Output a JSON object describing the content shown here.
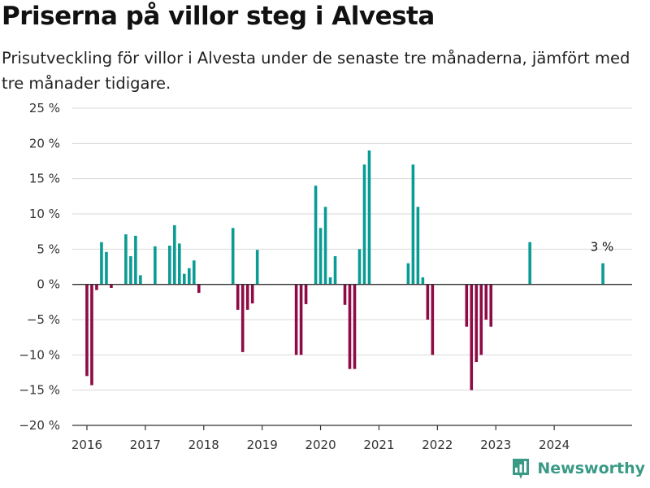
{
  "title": "Priserna på villor steg i Alvesta",
  "subtitle": "Prisutveckling för villor i Alvesta under de senaste tre månaderna, jämfört med tre månader tidigare.",
  "brand": {
    "name": "Newsworthy",
    "icon": "newsworthy-logo-icon",
    "color": "#3a9a86"
  },
  "colors": {
    "positive": "#0a9c94",
    "negative": "#8e0b45",
    "grid": "#d9d9d9",
    "zero_line": "#333333"
  },
  "chart_data": {
    "type": "bar",
    "title": "Priserna på villor steg i Alvesta",
    "subtitle": "Prisutveckling för villor i Alvesta under de senaste tre månaderna, jämfört med tre månader tidigare.",
    "xlabel": "",
    "ylabel": "",
    "ylim": [
      -20,
      25
    ],
    "xlim": [
      "2015-10",
      "2025-05"
    ],
    "grid": true,
    "y_ticks": [
      {
        "value": 25,
        "label": "25 %"
      },
      {
        "value": 20,
        "label": "20 %"
      },
      {
        "value": 15,
        "label": "15 %"
      },
      {
        "value": 10,
        "label": "10 %"
      },
      {
        "value": 5,
        "label": "5 %"
      },
      {
        "value": 0,
        "label": "0 %"
      },
      {
        "value": -5,
        "label": "−5 %"
      },
      {
        "value": -10,
        "label": "−10 %"
      },
      {
        "value": -15,
        "label": "−15 %"
      },
      {
        "value": -20,
        "label": "−20 %"
      }
    ],
    "x_ticks": [
      {
        "value": "2016-01",
        "label": "2016"
      },
      {
        "value": "2017-01",
        "label": "2017"
      },
      {
        "value": "2018-01",
        "label": "2018"
      },
      {
        "value": "2019-01",
        "label": "2019"
      },
      {
        "value": "2020-01",
        "label": "2020"
      },
      {
        "value": "2021-01",
        "label": "2021"
      },
      {
        "value": "2022-01",
        "label": "2022"
      },
      {
        "value": "2023-01",
        "label": "2023"
      },
      {
        "value": "2024-01",
        "label": "2024"
      }
    ],
    "annotation": {
      "x": "2024-11",
      "y": 3,
      "label": "3 %"
    },
    "bars": [
      {
        "x": "2016-01",
        "y": -13
      },
      {
        "x": "2016-02",
        "y": -14.3
      },
      {
        "x": "2016-03",
        "y": -0.8
      },
      {
        "x": "2016-04",
        "y": 6
      },
      {
        "x": "2016-05",
        "y": 4.6
      },
      {
        "x": "2016-06",
        "y": -0.5
      },
      {
        "x": "2016-09",
        "y": 7.1
      },
      {
        "x": "2016-10",
        "y": 4
      },
      {
        "x": "2016-11",
        "y": 6.9
      },
      {
        "x": "2016-12",
        "y": 1.3
      },
      {
        "x": "2017-03",
        "y": 5.4
      },
      {
        "x": "2017-06",
        "y": 5.5
      },
      {
        "x": "2017-07",
        "y": 8.4
      },
      {
        "x": "2017-08",
        "y": 5.8
      },
      {
        "x": "2017-09",
        "y": 1.5
      },
      {
        "x": "2017-10",
        "y": 2.3
      },
      {
        "x": "2017-11",
        "y": 3.4
      },
      {
        "x": "2017-12",
        "y": -1.2
      },
      {
        "x": "2018-07",
        "y": 8
      },
      {
        "x": "2018-08",
        "y": -3.6
      },
      {
        "x": "2018-09",
        "y": -9.6
      },
      {
        "x": "2018-10",
        "y": -3.6
      },
      {
        "x": "2018-11",
        "y": -2.7
      },
      {
        "x": "2018-12",
        "y": 4.9
      },
      {
        "x": "2019-08",
        "y": -10
      },
      {
        "x": "2019-09",
        "y": -10
      },
      {
        "x": "2019-10",
        "y": -2.8
      },
      {
        "x": "2019-12",
        "y": 14
      },
      {
        "x": "2020-01",
        "y": 8
      },
      {
        "x": "2020-02",
        "y": 11
      },
      {
        "x": "2020-03",
        "y": 1
      },
      {
        "x": "2020-04",
        "y": 4
      },
      {
        "x": "2020-06",
        "y": -2.9
      },
      {
        "x": "2020-07",
        "y": -12
      },
      {
        "x": "2020-08",
        "y": -12
      },
      {
        "x": "2020-09",
        "y": 5
      },
      {
        "x": "2020-10",
        "y": 17
      },
      {
        "x": "2020-11",
        "y": 19
      },
      {
        "x": "2021-07",
        "y": 3
      },
      {
        "x": "2021-08",
        "y": 17
      },
      {
        "x": "2021-09",
        "y": 11
      },
      {
        "x": "2021-10",
        "y": 1
      },
      {
        "x": "2021-11",
        "y": -5
      },
      {
        "x": "2021-12",
        "y": -10
      },
      {
        "x": "2022-07",
        "y": -6
      },
      {
        "x": "2022-08",
        "y": -15
      },
      {
        "x": "2022-09",
        "y": -11
      },
      {
        "x": "2022-10",
        "y": -10
      },
      {
        "x": "2022-11",
        "y": -5
      },
      {
        "x": "2022-12",
        "y": -6
      },
      {
        "x": "2023-08",
        "y": 6
      },
      {
        "x": "2024-11",
        "y": 3
      }
    ]
  }
}
